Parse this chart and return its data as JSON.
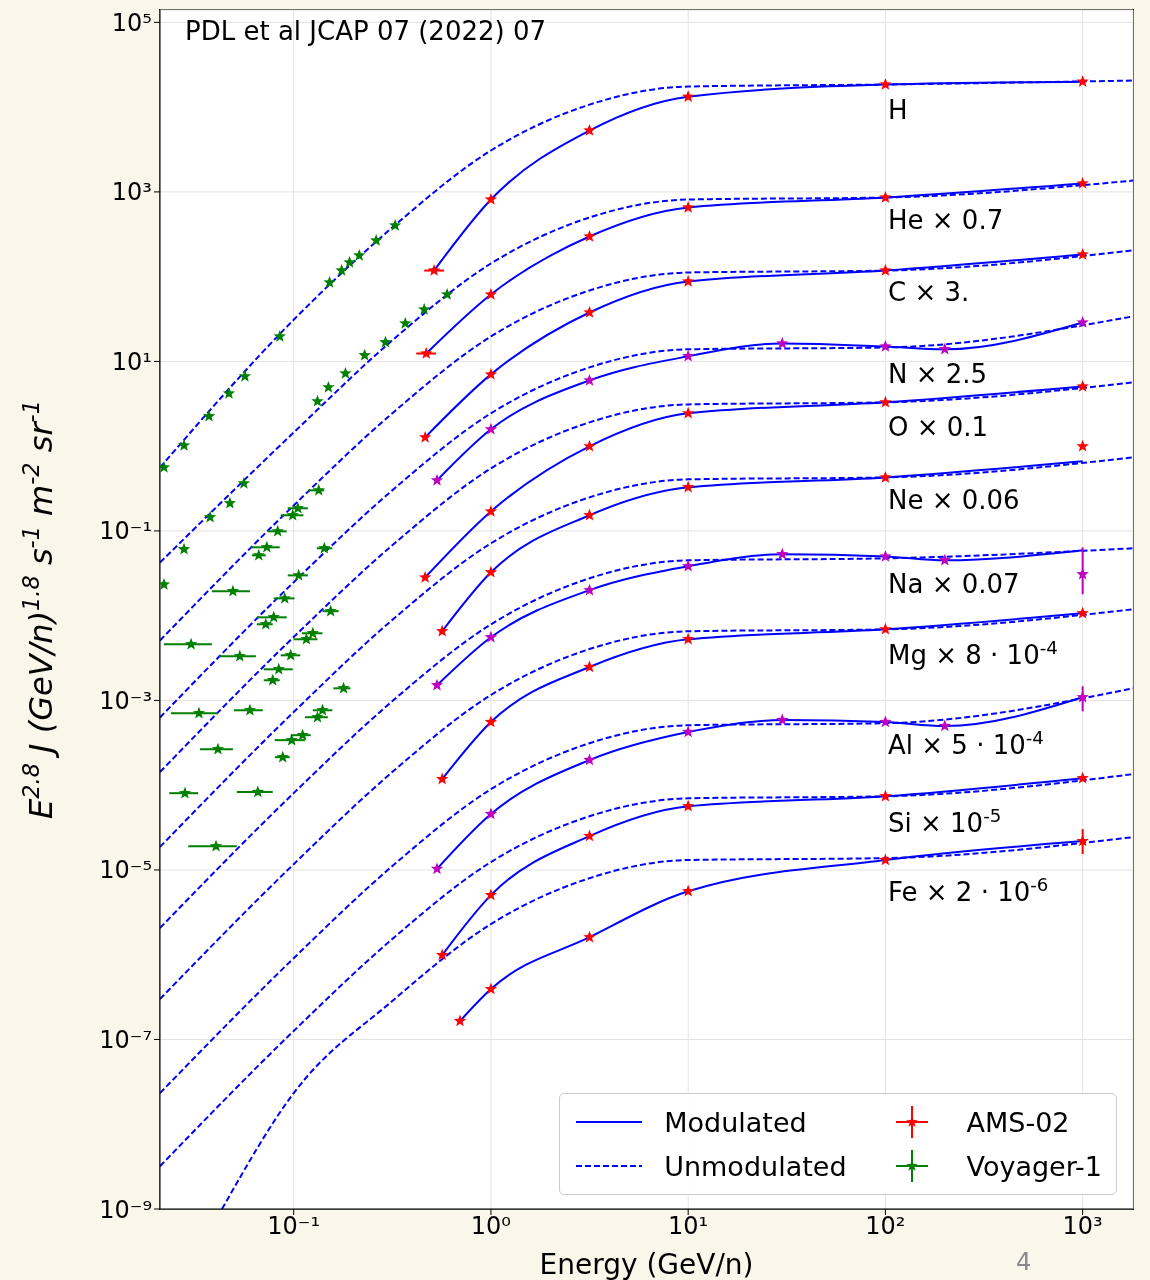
{
  "chart_data": {
    "type": "line",
    "xlabel": "Energy (GeV/n)",
    "ylabel": "E$^{2.8}$ J (GeV/n)$^{1.8}$ s$^{-1}$ m$^{-2}$ sr$^{-1}$",
    "log": "xy",
    "grid": true,
    "legend": "bottom right",
    "xlim": [
      0.021,
      1800
    ],
    "ylim": [
      1e-09,
      140000
    ],
    "xticks": [
      {
        "value": 0.1,
        "label": "10⁻¹"
      },
      {
        "value": 1,
        "label": "10⁰"
      },
      {
        "value": 10,
        "label": "10¹"
      },
      {
        "value": 100,
        "label": "10²"
      },
      {
        "value": 1000,
        "label": "10³"
      }
    ],
    "yticks": [
      {
        "value": 100000,
        "label": "10⁵"
      },
      {
        "value": 1000,
        "label": "10³"
      },
      {
        "value": 10,
        "label": "10¹"
      },
      {
        "value": 0.1,
        "label": "10⁻¹"
      },
      {
        "value": 0.001,
        "label": "10⁻³"
      },
      {
        "value": 1e-05,
        "label": "10⁻⁵"
      },
      {
        "value": 1e-07,
        "label": "10⁻⁷"
      },
      {
        "value": 1e-09,
        "label": "10⁻⁹"
      }
    ],
    "annotations": [
      "PDL et al JCAP 07 (2022) 07",
      "4",
      "H",
      "He × 0.7",
      "C × 3.",
      "N × 2.5",
      "O × 0.1",
      "Ne × 0.06",
      "Na × 0.07",
      "Mg × 8 · 10$^{-4}$",
      "Al × 5 · 10$^{-4}$",
      "Si × 10$^{-5}$",
      "Fe × 2 · 10$^{-6}$"
    ],
    "series": [
      {
        "name": "Modulated",
        "color": "#0000ff",
        "line_style": "solid",
        "x": [
          0.515,
          1,
          3.16,
          10,
          100,
          1000
        ],
        "values": [
          118,
          813,
          5300,
          13300,
          18500,
          20000
        ]
      },
      {
        "name": "Unmodulated",
        "color": "#0000ff",
        "line_style": "dashed",
        "x": [
          0.021,
          0.1,
          0.316,
          1,
          3.16,
          10,
          100,
          1800
        ],
        "values": [
          0.56,
          31,
          380,
          3080,
          10700,
          17500,
          18500,
          20600
        ]
      },
      {
        "type": "scatter",
        "name": "AMS-02",
        "color": "#ff0000",
        "marker": "star",
        "x": [
          0.515,
          1,
          3.16,
          10,
          100,
          1000
        ],
        "values": [
          118,
          813,
          5300,
          13300,
          18500,
          20000
        ],
        "xerrors": [
          [
            0.459,
            0.579
          ],
          null,
          null,
          null,
          null,
          null
        ]
      },
      {
        "type": "scatter",
        "name": "Voyager-1",
        "color": "#008000",
        "marker": "star",
        "x": [
          0.022,
          0.0278,
          0.0372,
          0.047,
          0.0566,
          0.085,
          0.152,
          0.175,
          0.192,
          0.215,
          0.262,
          0.327
        ],
        "values": [
          0.562,
          1.02,
          2.25,
          4.19,
          6.66,
          19.7,
          85.5,
          118,
          147,
          178,
          267,
          402
        ]
      },
      {
        "color": "#0000ff",
        "line_style": "solid",
        "x": [
          0.47,
          1,
          3.16,
          10,
          100,
          1000
        ],
        "values": [
          12.4,
          61.7,
          298,
          655,
          859,
          1260
        ]
      },
      {
        "color": "#0000ff",
        "line_style": "dashed",
        "x": [
          0.021,
          0.1,
          0.316,
          1,
          3.16,
          10,
          100,
          1800
        ],
        "values": [
          0.0424,
          1.45,
          17.7,
          143,
          499,
          813,
          859,
          1360
        ]
      },
      {
        "type": "scatter",
        "color": "#ff0000",
        "marker": "star",
        "x": [
          0.47,
          1,
          3.16,
          10,
          100,
          1000
        ],
        "values": [
          12.4,
          61.7,
          298,
          655,
          859,
          1260
        ],
        "xerrors": [
          [
            0.418,
            0.527
          ],
          null,
          null,
          null,
          null,
          null
        ]
      },
      {
        "type": "scatter",
        "color": "#008000",
        "marker": "star",
        "x": [
          0.022,
          0.0278,
          0.0377,
          0.0475,
          0.0559,
          0.132,
          0.15,
          0.183,
          0.229,
          0.292,
          0.368,
          0.459,
          0.6
        ],
        "values": [
          0.0234,
          0.0607,
          0.145,
          0.212,
          0.364,
          3.38,
          4.94,
          7.22,
          11.8,
          16.8,
          28.1,
          41.0,
          61.7
        ]
      },
      {
        "color": "#0000ff",
        "line_style": "solid",
        "x": [
          0.464,
          1,
          3.16,
          10,
          100,
          1000
        ],
        "values": [
          1.27,
          7.03,
          37.8,
          87.8,
          118,
          183
        ]
      },
      {
        "color": "#0000ff",
        "line_style": "dashed",
        "x": [
          0.021,
          0.1,
          0.316,
          1,
          3.16,
          10,
          100,
          1800
        ],
        "values": [
          0.0051,
          0.2,
          2.44,
          19.7,
          68.7,
          112,
          118,
          204
        ]
      },
      {
        "type": "scatter",
        "color": "#ff0000",
        "marker": "star",
        "x": [
          0.464,
          1,
          3.16,
          10,
          100,
          1000
        ],
        "values": [
          1.27,
          7.03,
          37.8,
          87.8,
          118,
          183
        ]
      },
      {
        "color": "#0000ff",
        "line_style": "solid",
        "x": [
          0.533,
          1,
          3.16,
          10,
          30,
          100,
          200,
          1000
        ],
        "values": [
          0.395,
          1.58,
          5.97,
          11.5,
          16.3,
          15.0,
          13.9,
          28.8
        ]
      },
      {
        "color": "#0000ff",
        "line_style": "dashed",
        "x": [
          0.021,
          0.1,
          0.316,
          1,
          3.16,
          10,
          100,
          1800
        ],
        "values": [
          0.00063,
          0.0248,
          0.301,
          2.44,
          8.5,
          13.9,
          14.6,
          34.0
        ]
      },
      {
        "type": "scatter",
        "color": "#bf00bf",
        "marker": "star",
        "x": [
          0.533,
          1,
          3.16,
          10,
          30,
          100,
          200,
          1000
        ],
        "values": [
          0.395,
          1.58,
          5.97,
          11.5,
          16.3,
          15.0,
          13.9,
          28.8
        ]
      },
      {
        "color": "#0000ff",
        "line_style": "solid",
        "x": [
          0.464,
          1,
          3.16,
          10,
          100,
          1000
        ],
        "values": [
          0.0283,
          0.17,
          0.995,
          2.44,
          3.29,
          5.07
        ]
      },
      {
        "color": "#0000ff",
        "line_style": "dashed",
        "x": [
          0.021,
          0.1,
          0.316,
          1,
          3.16,
          10,
          100,
          1800
        ],
        "values": [
          0.000143,
          0.0056,
          0.0676,
          0.547,
          1.91,
          3.11,
          3.29,
          5.65
        ]
      },
      {
        "type": "scatter",
        "color": "#ff0000",
        "marker": "star",
        "x": [
          0.464,
          1,
          3.16,
          10,
          100,
          1000
        ],
        "values": [
          0.0283,
          0.17,
          0.995,
          2.44,
          3.29,
          5.07
        ]
      },
      {
        "color": "#0000ff",
        "line_style": "solid",
        "x": [
          0.566,
          1,
          3.16,
          10,
          100,
          1000
        ],
        "values": [
          0.00655,
          0.0325,
          0.153,
          0.327,
          0.428,
          0.662
        ]
      },
      {
        "color": "#0000ff",
        "line_style": "dashed",
        "x": [
          0.021,
          0.1,
          0.316,
          1,
          3.16,
          10,
          100,
          1800
        ],
        "values": [
          1.87e-05,
          0.00073,
          0.0089,
          0.0714,
          0.249,
          0.406,
          0.428,
          0.738
        ]
      },
      {
        "type": "scatter",
        "color": "#ff0000",
        "marker": "star",
        "x": [
          0.566,
          1,
          3.16,
          10,
          100,
          1000
        ],
        "values": [
          0.00655,
          0.0325,
          0.153,
          0.327,
          0.428,
          0.995
        ]
      },
      {
        "color": "#0000ff",
        "line_style": "solid",
        "x": [
          0.533,
          1,
          3.16,
          10,
          30,
          100,
          200,
          1000
        ],
        "values": [
          0.00151,
          0.00556,
          0.02,
          0.0383,
          0.053,
          0.05,
          0.045,
          0.059
        ]
      },
      {
        "color": "#0000ff",
        "line_style": "dashed",
        "x": [
          0.021,
          0.1,
          0.316,
          1,
          3.16,
          10,
          100,
          1800
        ],
        "values": [
          2.07e-06,
          8.07e-05,
          0.00098,
          0.0079,
          0.0276,
          0.045,
          0.0475,
          0.0624
        ]
      },
      {
        "type": "scatter",
        "color": "#bf00bf",
        "marker": "star",
        "x": [
          0.533,
          1,
          3.16,
          10,
          30,
          100,
          200,
          1000
        ],
        "values": [
          0.00151,
          0.00556,
          0.02,
          0.0383,
          0.053,
          0.05,
          0.045,
          0.0308
        ],
        "errors": [
          null,
          null,
          null,
          null,
          null,
          null,
          null,
          [
            0.0179,
            0.064
          ]
        ]
      },
      {
        "color": "#0000ff",
        "line_style": "solid",
        "x": [
          0.566,
          1,
          3.16,
          10,
          100,
          1000
        ],
        "values": [
          0.000118,
          0.000556,
          0.00248,
          0.00527,
          0.0069,
          0.0107
        ]
      },
      {
        "color": "#0000ff",
        "line_style": "dashed",
        "x": [
          0.021,
          0.1,
          0.316,
          1,
          3.16,
          10,
          100,
          1800
        ],
        "values": [
          3e-07,
          1.17e-05,
          0.000143,
          0.00116,
          0.00404,
          0.00655,
          0.0069,
          0.0119
        ]
      },
      {
        "type": "scatter",
        "color": "#ff0000",
        "marker": "star",
        "x": [
          0.566,
          1,
          3.16,
          10,
          100,
          1000
        ],
        "values": [
          0.000118,
          0.000556,
          0.00248,
          0.00527,
          0.0069,
          0.0107
        ]
      },
      {
        "color": "#0000ff",
        "line_style": "solid",
        "x": [
          0.533,
          1,
          3.16,
          10,
          30,
          100,
          200,
          1000
        ],
        "values": [
          1.03e-05,
          4.57e-05,
          0.000198,
          0.000424,
          0.000587,
          0.000556,
          0.000499,
          0.00109
        ]
      },
      {
        "color": "#0000ff",
        "line_style": "dashed",
        "x": [
          0.021,
          0.1,
          0.316,
          1,
          3.16,
          10,
          100,
          1800
        ],
        "values": [
          2.33e-08,
          9.1e-07,
          1.11e-05,
          8.97e-05,
          0.000313,
          0.00051,
          0.000539,
          0.00139
        ]
      },
      {
        "type": "scatter",
        "color": "#bf00bf",
        "marker": "star",
        "x": [
          0.533,
          1,
          3.16,
          10,
          30,
          100,
          200,
          1000
        ],
        "values": [
          1.03e-05,
          4.57e-05,
          0.000198,
          0.000424,
          0.000587,
          0.000556,
          0.000499,
          0.00109
        ],
        "errors": [
          null,
          null,
          null,
          null,
          null,
          null,
          null,
          [
            0.000743,
            0.00147
          ]
        ]
      },
      {
        "color": "#0000ff",
        "line_style": "solid",
        "x": [
          0.566,
          1,
          3.16,
          10,
          100,
          1000
        ],
        "values": [
          9.9e-07,
          5.05e-06,
          2.51e-05,
          5.65e-05,
          7.4e-05,
          0.000121
        ]
      },
      {
        "color": "#0000ff",
        "line_style": "dashed",
        "x": [
          0.021,
          0.1,
          0.316,
          1,
          3.16,
          10,
          100,
          1800
        ],
        "values": [
          3.2e-09,
          1.26e-07,
          1.53e-06,
          1.24e-05,
          4.3e-05,
          7e-05,
          7.4e-05,
          0.000135
        ]
      },
      {
        "type": "scatter",
        "color": "#ff0000",
        "marker": "star",
        "x": [
          0.566,
          1,
          3.16,
          10,
          100,
          1000
        ],
        "values": [
          9.9e-07,
          5.05e-06,
          2.51e-05,
          5.65e-05,
          7.4e-05,
          0.000121
        ]
      },
      {
        "color": "#0000ff",
        "line_style": "solid",
        "x": [
          0.697,
          1,
          3.16,
          10,
          100,
          1000
        ],
        "values": [
          1.65e-07,
          3.93e-07,
          1.61e-06,
          5.6e-06,
          1.31e-05,
          2.19e-05
        ]
      },
      {
        "color": "#0000ff",
        "line_style": "dashed",
        "x": [
          0.0433,
          0.1,
          0.316,
          1,
          3.16,
          10,
          100,
          1800
        ],
        "values": [
          1e-09,
          2.33e-08,
          2.84e-07,
          2.3e-06,
          8e-06,
          1.31e-05,
          1.38e-05,
          2.44e-05
        ]
      },
      {
        "type": "scatter",
        "color": "#ff0000",
        "marker": "star",
        "x": [
          0.697,
          1,
          3.16,
          10,
          100,
          1000
        ],
        "values": [
          1.65e-07,
          3.93e-07,
          1.61e-06,
          5.6e-06,
          1.31e-05,
          2.19e-05
        ],
        "errors": [
          null,
          null,
          null,
          null,
          null,
          [
            1.54e-05,
            3.03e-05
          ]
        ]
      },
      {
        "type": "scatter",
        "color": "#008000",
        "marker": "star",
        "x": [
          0.134,
          0.105,
          0.0989,
          0.083,
          0.0731,
          0.0665,
          0.143,
          0.106,
          0.0492,
          0.0901,
          0.0792,
          0.0722,
          0.154,
          0.125,
          0.116,
          0.0302,
          0.0533,
          0.0966,
          0.084,
          0.0783,
          0.179,
          0.0331,
          0.06,
          0.14,
          0.132,
          0.111,
          0.0977,
          0.0413,
          0.088,
          0.0281,
          0.0658,
          0.0404
        ],
        "values": [
          0.301,
          0.185,
          0.153,
          0.0989,
          0.0641,
          0.0515,
          0.0624,
          0.0299,
          0.0194,
          0.016,
          0.00957,
          0.00792,
          0.0113,
          0.0062,
          0.00527,
          0.0046,
          0.00332,
          0.00341,
          0.00233,
          0.00173,
          0.00139,
          0.000706,
          0.000766,
          0.000766,
          0.000634,
          0.000389,
          0.00034,
          0.000266,
          0.000214,
          8.05e-05,
          8.31e-05,
          1.91e-05
        ],
        "xerrors": [
          [
            0.119,
            0.143
          ],
          [
            0.0933,
            0.118
          ],
          [
            0.0859,
            0.112
          ],
          [
            0.0739,
            0.0922
          ],
          [
            0.0607,
            0.085
          ],
          [
            0.0614,
            0.0722
          ],
          [
            0.131,
            0.157
          ],
          [
            0.0933,
            0.118
          ],
          [
            0.0385,
            0.06
          ],
          [
            0.0792,
            0.101
          ],
          [
            0.065,
            0.0922
          ],
          [
            0.065,
            0.0783
          ],
          [
            0.14,
            0.169
          ],
          [
            0.11,
            0.14
          ],
          [
            0.1,
            0.132
          ],
          [
            0.022,
            0.0385
          ],
          [
            0.0418,
            0.0643
          ],
          [
            0.0859,
            0.108
          ],
          [
            0.0705,
            0.0989
          ],
          [
            0.0705,
            0.085
          ],
          [
            0.159,
            0.194
          ],
          [
            0.0239,
            0.0413
          ],
          [
            0.0498,
            0.0697
          ],
          [
            0.125,
            0.157
          ],
          [
            0.114,
            0.149
          ],
          [
            0.0966,
            0.122
          ],
          [
            0.0802,
            0.114
          ],
          [
            0.0335,
            0.0492
          ],
          [
            0.0802,
            0.0955
          ],
          [
            0.0234,
            0.0328
          ],
          [
            0.0515,
            0.0783
          ],
          [
            0.0292,
            0.0515
          ]
        ]
      }
    ]
  }
}
